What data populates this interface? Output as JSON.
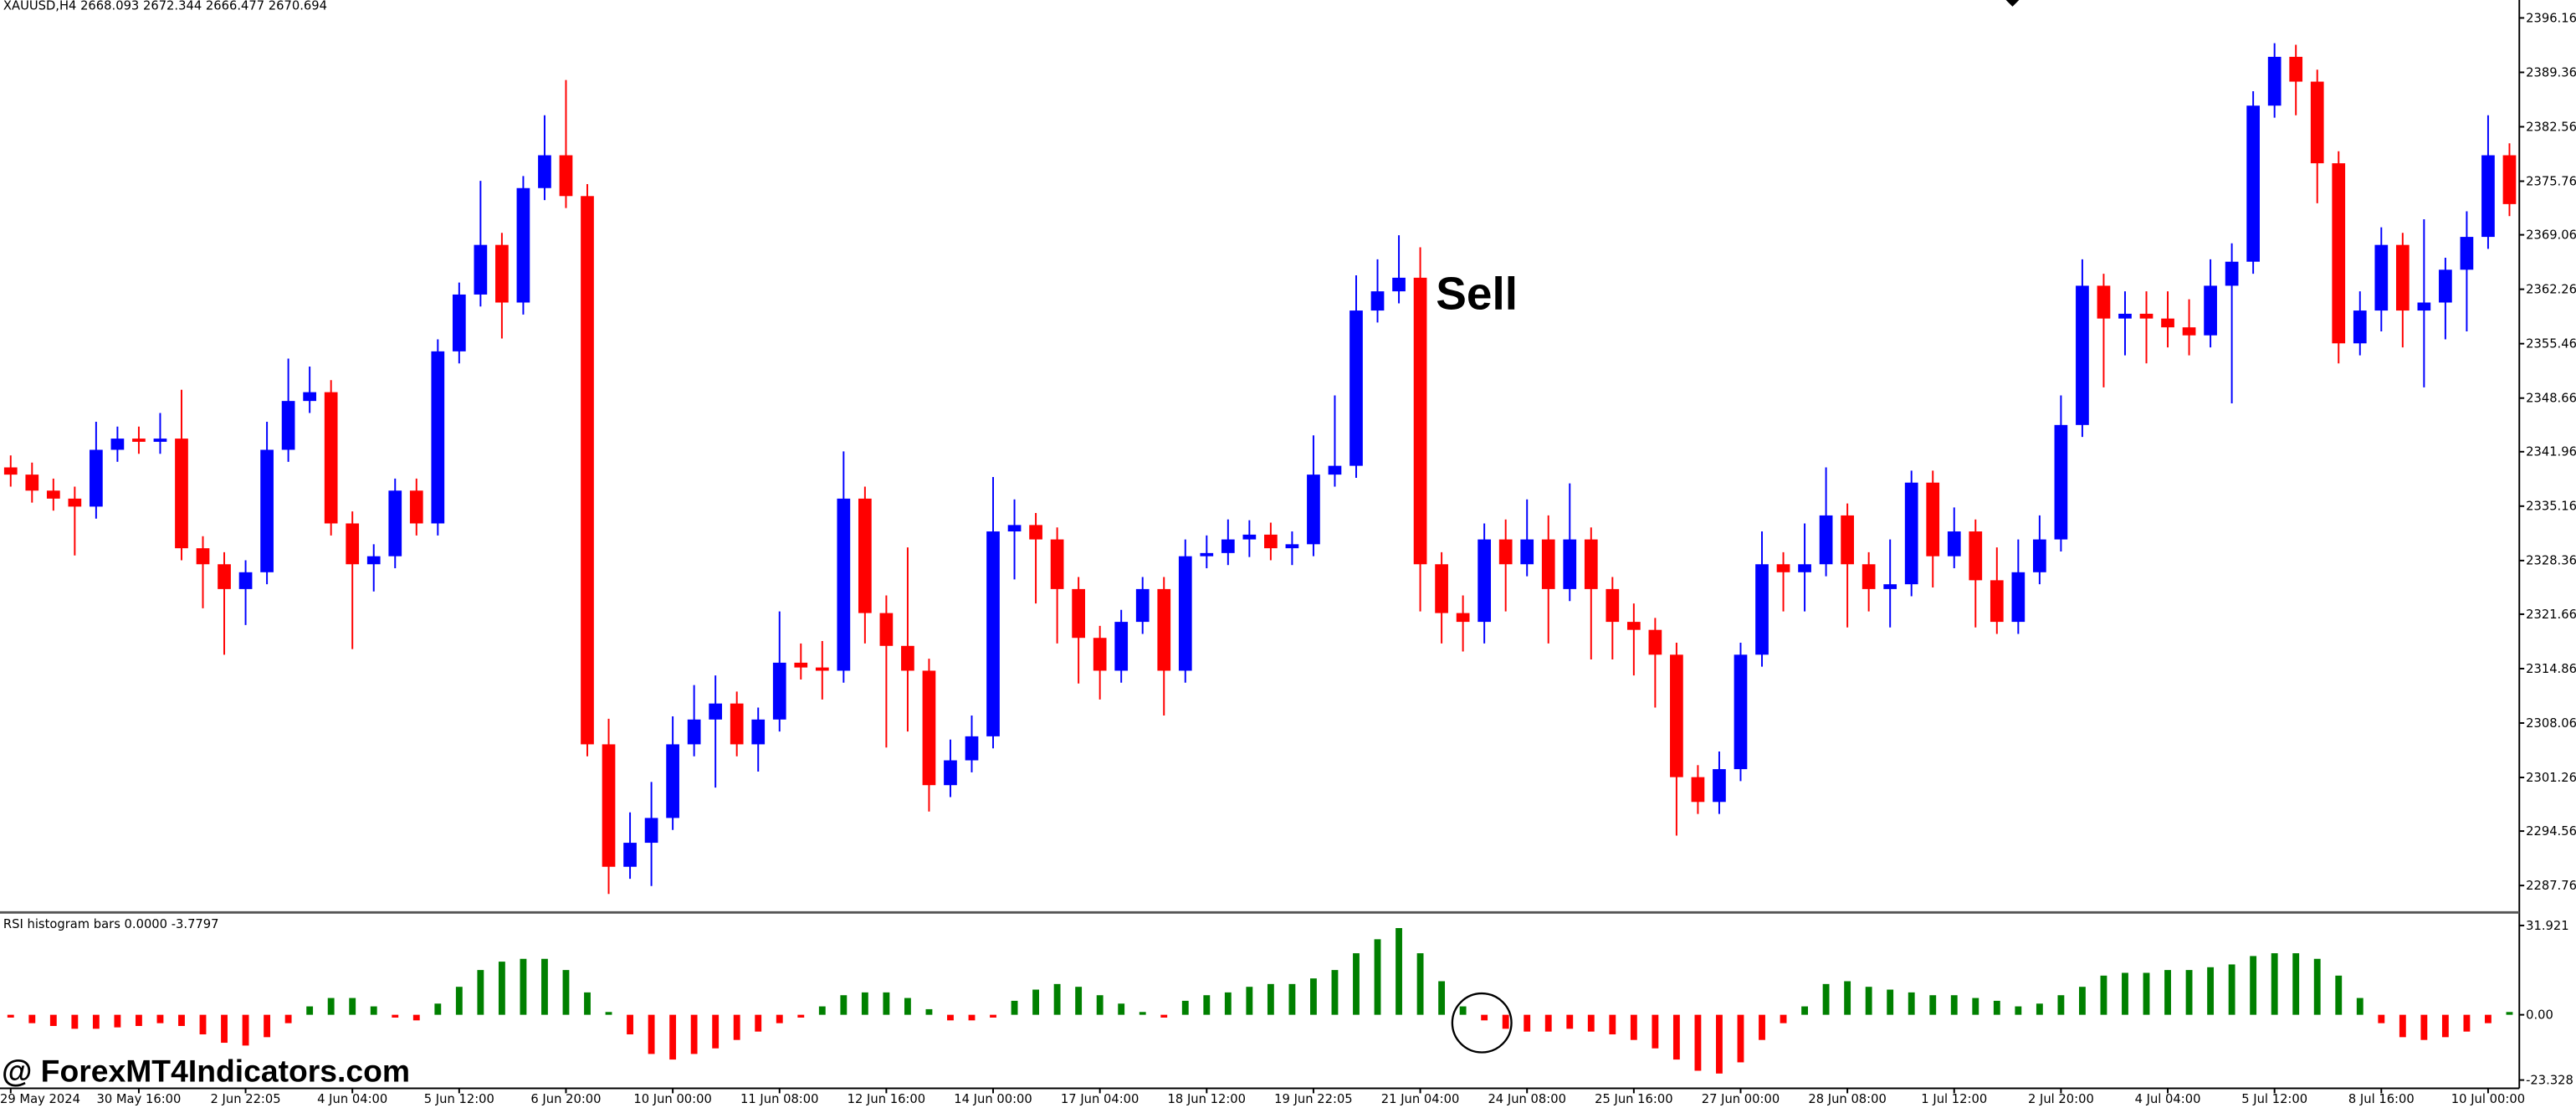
{
  "chart_data": [
    {
      "type": "candlestick",
      "title": "XAUUSD,H4 2668.093 2672.344 2666.477 2670.694",
      "annotation": "Sell",
      "up_color": "#0000ff",
      "down_color": "#ff0000",
      "ylim": [
        2284.5,
        2398.4
      ],
      "yticks": [
        {
          "value": 2396.16,
          "label": "2396.160"
        },
        {
          "value": 2389.36,
          "label": "2389.360"
        },
        {
          "value": 2382.56,
          "label": "2382.560"
        },
        {
          "value": 2375.76,
          "label": "2375.760"
        },
        {
          "value": 2369.06,
          "label": "2369.060"
        },
        {
          "value": 2362.26,
          "label": "2362.260"
        },
        {
          "value": 2355.46,
          "label": "2355.460"
        },
        {
          "value": 2348.66,
          "label": "2348.660"
        },
        {
          "value": 2341.96,
          "label": "2341.960"
        },
        {
          "value": 2335.16,
          "label": "2335.160"
        },
        {
          "value": 2328.36,
          "label": "2328.360"
        },
        {
          "value": 2321.66,
          "label": "2321.660"
        },
        {
          "value": 2314.86,
          "label": "2314.860"
        },
        {
          "value": 2308.06,
          "label": "2308.060"
        },
        {
          "value": 2301.26,
          "label": "2301.260"
        },
        {
          "value": 2294.56,
          "label": "2294.560"
        },
        {
          "value": 2287.76,
          "label": "2287.760"
        }
      ],
      "categories": [
        "29 May 2024",
        null,
        null,
        null,
        null,
        null,
        "30 May 16:00",
        null,
        null,
        null,
        null,
        "2 Jun 22:05",
        null,
        null,
        null,
        null,
        "4 Jun 04:00",
        null,
        null,
        null,
        null,
        "5 Jun 12:00",
        null,
        null,
        null,
        null,
        "6 Jun 20:00",
        null,
        null,
        null,
        null,
        "10 Jun 00:00",
        null,
        null,
        null,
        null,
        "11 Jun 08:00",
        null,
        null,
        null,
        null,
        "12 Jun 16:00",
        null,
        null,
        null,
        null,
        "14 Jun 00:00",
        null,
        null,
        null,
        null,
        "17 Jun 04:00",
        null,
        null,
        null,
        null,
        "18 Jun 12:00",
        null,
        null,
        null,
        null,
        "19 Jun 22:05",
        null,
        null,
        null,
        null,
        "21 Jun 04:00",
        null,
        null,
        null,
        null,
        "24 Jun 08:00",
        null,
        null,
        null,
        null,
        "25 Jun 16:00",
        null,
        null,
        null,
        null,
        "27 Jun 00:00",
        null,
        null,
        null,
        null,
        "28 Jun 08:00",
        null,
        null,
        null,
        null,
        "1 Jul 12:00",
        null,
        null,
        null,
        null,
        "2 Jul 20:00",
        null,
        null,
        null,
        null,
        "4 Jul 04:00",
        null,
        null,
        null,
        null,
        "5 Jul 12:00",
        null,
        null,
        null,
        null,
        "8 Jul 16:00",
        null,
        null,
        null,
        null,
        "10 Jul 00:00",
        null
      ],
      "ohlc": [
        [
          2340.0,
          2341.5,
          2337.6,
          2339.1
        ],
        [
          2339.1,
          2340.6,
          2335.6,
          2337.1
        ],
        [
          2337.1,
          2338.6,
          2334.6,
          2336.1
        ],
        [
          2336.1,
          2337.6,
          2329.0,
          2335.1
        ],
        [
          2335.1,
          2345.7,
          2333.6,
          2342.2
        ],
        [
          2342.2,
          2345.1,
          2340.7,
          2343.6
        ],
        [
          2343.6,
          2345.1,
          2341.7,
          2343.2
        ],
        [
          2343.2,
          2346.8,
          2341.7,
          2343.6
        ],
        [
          2343.6,
          2349.7,
          2328.4,
          2329.9
        ],
        [
          2329.9,
          2331.4,
          2322.4,
          2327.9
        ],
        [
          2327.9,
          2329.4,
          2316.6,
          2324.8
        ],
        [
          2324.8,
          2328.4,
          2320.3,
          2326.9
        ],
        [
          2326.9,
          2345.7,
          2325.4,
          2342.2
        ],
        [
          2342.2,
          2353.6,
          2340.7,
          2348.3
        ],
        [
          2348.3,
          2352.6,
          2346.8,
          2349.4
        ],
        [
          2349.4,
          2350.9,
          2331.5,
          2333.0
        ],
        [
          2333.0,
          2334.5,
          2317.3,
          2327.9
        ],
        [
          2327.9,
          2330.4,
          2324.5,
          2328.9
        ],
        [
          2328.9,
          2338.6,
          2327.4,
          2337.1
        ],
        [
          2337.1,
          2338.6,
          2331.5,
          2333.0
        ],
        [
          2333.0,
          2356.0,
          2331.5,
          2354.5
        ],
        [
          2354.5,
          2363.1,
          2353.0,
          2361.6
        ],
        [
          2361.6,
          2375.8,
          2360.1,
          2367.8
        ],
        [
          2367.8,
          2369.3,
          2356.1,
          2360.6
        ],
        [
          2360.6,
          2376.4,
          2359.1,
          2374.9
        ],
        [
          2374.9,
          2384.0,
          2373.4,
          2379.0
        ],
        [
          2379.0,
          2388.4,
          2372.4,
          2373.9
        ],
        [
          2373.9,
          2375.4,
          2303.9,
          2305.4
        ],
        [
          2305.4,
          2308.6,
          2286.7,
          2290.1
        ],
        [
          2290.1,
          2296.9,
          2288.6,
          2293.1
        ],
        [
          2293.1,
          2300.7,
          2287.7,
          2296.2
        ],
        [
          2296.2,
          2308.9,
          2294.7,
          2305.4
        ],
        [
          2305.4,
          2312.8,
          2303.9,
          2308.5
        ],
        [
          2308.5,
          2314.0,
          2300.0,
          2310.5
        ],
        [
          2310.5,
          2312.0,
          2303.9,
          2305.4
        ],
        [
          2305.4,
          2310.0,
          2302.0,
          2308.5
        ],
        [
          2308.5,
          2322.0,
          2307.0,
          2315.6
        ],
        [
          2315.6,
          2318.0,
          2313.5,
          2315.0
        ],
        [
          2315.0,
          2318.3,
          2311.0,
          2314.6
        ],
        [
          2314.6,
          2342.0,
          2313.1,
          2336.1
        ],
        [
          2336.1,
          2337.6,
          2318.0,
          2321.8
        ],
        [
          2321.8,
          2324.0,
          2305.0,
          2317.7
        ],
        [
          2317.7,
          2330.0,
          2307.0,
          2314.6
        ],
        [
          2314.6,
          2316.1,
          2297.0,
          2300.3
        ],
        [
          2300.3,
          2306.0,
          2298.8,
          2303.4
        ],
        [
          2303.4,
          2309.0,
          2301.9,
          2306.4
        ],
        [
          2306.4,
          2338.8,
          2304.9,
          2332.0
        ],
        [
          2332.0,
          2336.0,
          2326.0,
          2332.8
        ],
        [
          2332.8,
          2334.3,
          2323.0,
          2331.0
        ],
        [
          2331.0,
          2332.5,
          2318.0,
          2324.8
        ],
        [
          2324.8,
          2326.3,
          2313.0,
          2318.7
        ],
        [
          2318.7,
          2320.2,
          2311.0,
          2314.6
        ],
        [
          2314.6,
          2322.2,
          2313.1,
          2320.7
        ],
        [
          2320.7,
          2326.3,
          2319.2,
          2324.8
        ],
        [
          2324.8,
          2326.3,
          2309.0,
          2314.6
        ],
        [
          2314.6,
          2331.0,
          2313.1,
          2328.9
        ],
        [
          2328.9,
          2331.5,
          2327.4,
          2329.3
        ],
        [
          2329.3,
          2333.5,
          2327.8,
          2331.0
        ],
        [
          2331.0,
          2333.4,
          2328.8,
          2331.6
        ],
        [
          2331.6,
          2333.1,
          2328.4,
          2329.9
        ],
        [
          2329.9,
          2332.0,
          2327.8,
          2330.4
        ],
        [
          2330.4,
          2344.0,
          2328.9,
          2339.1
        ],
        [
          2339.1,
          2349.0,
          2337.6,
          2340.2
        ],
        [
          2340.2,
          2364.0,
          2338.7,
          2359.6
        ],
        [
          2359.6,
          2366.0,
          2358.1,
          2362.0
        ],
        [
          2362.0,
          2369.0,
          2360.5,
          2363.7
        ],
        [
          2363.7,
          2367.5,
          2322.0,
          2327.9
        ],
        [
          2327.9,
          2329.4,
          2318.0,
          2321.8
        ],
        [
          2321.8,
          2324.0,
          2317.0,
          2320.7
        ],
        [
          2320.7,
          2333.0,
          2318.0,
          2331.0
        ],
        [
          2331.0,
          2333.5,
          2322.0,
          2327.9
        ],
        [
          2327.9,
          2336.0,
          2326.4,
          2331.0
        ],
        [
          2331.0,
          2334.0,
          2318.0,
          2324.8
        ],
        [
          2324.8,
          2338.0,
          2323.3,
          2331.0
        ],
        [
          2331.0,
          2332.5,
          2316.0,
          2324.8
        ],
        [
          2324.8,
          2326.3,
          2316.0,
          2320.7
        ],
        [
          2320.7,
          2323.0,
          2314.0,
          2319.7
        ],
        [
          2319.7,
          2321.2,
          2310.0,
          2316.6
        ],
        [
          2316.6,
          2318.1,
          2294.0,
          2301.3
        ],
        [
          2301.3,
          2302.8,
          2296.7,
          2298.2
        ],
        [
          2298.2,
          2304.5,
          2296.7,
          2302.3
        ],
        [
          2302.3,
          2318.1,
          2300.8,
          2316.6
        ],
        [
          2316.6,
          2332.0,
          2315.1,
          2327.9
        ],
        [
          2327.9,
          2329.4,
          2322.0,
          2326.9
        ],
        [
          2326.9,
          2333.0,
          2322.0,
          2327.9
        ],
        [
          2327.9,
          2340.0,
          2326.4,
          2334.0
        ],
        [
          2334.0,
          2335.5,
          2320.0,
          2327.9
        ],
        [
          2327.9,
          2329.4,
          2322.0,
          2324.8
        ],
        [
          2324.8,
          2331.0,
          2320.0,
          2325.4
        ],
        [
          2325.4,
          2339.6,
          2323.9,
          2338.1
        ],
        [
          2338.1,
          2339.6,
          2325.0,
          2328.9
        ],
        [
          2328.9,
          2335.0,
          2327.4,
          2332.0
        ],
        [
          2332.0,
          2333.5,
          2320.0,
          2325.9
        ],
        [
          2325.9,
          2330.0,
          2319.2,
          2320.7
        ],
        [
          2320.7,
          2331.0,
          2319.2,
          2326.9
        ],
        [
          2326.9,
          2334.0,
          2325.4,
          2331.0
        ],
        [
          2331.0,
          2349.0,
          2329.5,
          2345.3
        ],
        [
          2345.3,
          2366.0,
          2343.8,
          2362.7
        ],
        [
          2362.7,
          2364.2,
          2350.0,
          2358.6
        ],
        [
          2358.6,
          2362.0,
          2354.0,
          2359.2
        ],
        [
          2359.2,
          2362.0,
          2353.0,
          2358.6
        ],
        [
          2358.6,
          2362.0,
          2355.0,
          2357.5
        ],
        [
          2357.5,
          2361.0,
          2354.0,
          2356.5
        ],
        [
          2356.5,
          2366.0,
          2355.0,
          2362.7
        ],
        [
          2362.7,
          2368.0,
          2348.0,
          2365.7
        ],
        [
          2365.7,
          2387.0,
          2364.2,
          2385.2
        ],
        [
          2385.2,
          2393.0,
          2383.7,
          2391.3
        ],
        [
          2391.3,
          2392.8,
          2384.0,
          2388.2
        ],
        [
          2388.2,
          2389.7,
          2373.0,
          2378.0
        ],
        [
          2378.0,
          2379.5,
          2353.0,
          2355.5
        ],
        [
          2355.5,
          2362.0,
          2354.0,
          2359.6
        ],
        [
          2359.6,
          2370.0,
          2357.0,
          2367.8
        ],
        [
          2367.8,
          2369.3,
          2355.0,
          2359.6
        ],
        [
          2359.6,
          2371.0,
          2350.0,
          2360.6
        ],
        [
          2360.6,
          2366.2,
          2356.0,
          2364.7
        ],
        [
          2364.7,
          2372.0,
          2357.0,
          2368.8
        ],
        [
          2368.8,
          2384.0,
          2367.3,
          2379.0
        ],
        [
          2379.0,
          2380.5,
          2371.4,
          2372.9
        ]
      ]
    },
    {
      "type": "bar",
      "title": "RSI histogram bars 0.0000 -3.7797",
      "up_color": "#008000",
      "down_color": "#ff0000",
      "ylim": [
        -26.3,
        36.3
      ],
      "yticks": [
        31.921,
        {
          "value": 0,
          "label": "0.00"
        },
        -23.328
      ],
      "values": [
        -1,
        -3,
        -4,
        -5,
        -5,
        -4.5,
        -4,
        -3,
        -4,
        -7,
        -10,
        -11,
        -8,
        -3,
        3,
        6,
        6,
        3,
        -1,
        -2,
        4,
        10,
        16,
        19,
        20,
        20,
        16,
        8,
        1,
        -7,
        -14,
        -16,
        -14,
        -12,
        -9,
        -6,
        -3,
        -1,
        3,
        7,
        8,
        8,
        6,
        2,
        -2,
        -2,
        -1,
        5,
        9,
        11,
        10,
        7,
        4,
        1,
        -1,
        5,
        7,
        8,
        10,
        11,
        11,
        13,
        16,
        22,
        27,
        31,
        22,
        12,
        3,
        -2,
        -5,
        -6,
        -6,
        -5,
        -6,
        -7,
        -9,
        -12,
        -16,
        -20,
        -21,
        -17,
        -9,
        -3,
        3,
        11,
        12,
        10,
        9,
        8,
        7,
        7,
        6,
        5,
        3,
        4,
        7,
        10,
        14,
        15,
        15,
        16,
        16,
        17,
        18,
        21,
        22,
        22,
        20,
        14,
        6,
        -3,
        -8,
        -9,
        -8,
        -6,
        -3,
        1
      ]
    }
  ],
  "watermark": "@ ForexMT4Indicators.com"
}
